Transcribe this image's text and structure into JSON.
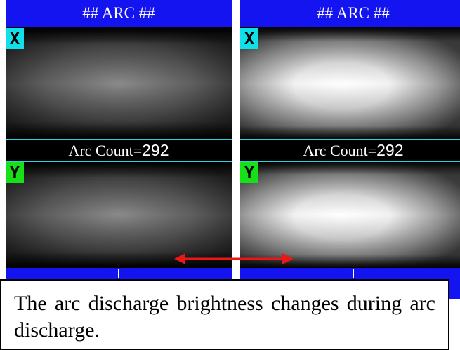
{
  "panels": [
    {
      "title": "## ARC ##",
      "x_label": "X",
      "y_label": "Y",
      "count_label": "Arc Count=",
      "count_value": "292",
      "brightness": 0.35
    },
    {
      "title": "## ARC ##",
      "x_label": "X",
      "y_label": "Y",
      "count_label": "Arc Count=",
      "count_value": "292",
      "brightness": 1.0
    }
  ],
  "caption": "The arc discharge brightness changes during arc discharge.",
  "colors": {
    "title_bar": "#1414f0",
    "x_badge": "#12e0e8",
    "y_badge": "#18e018",
    "separator": "#22d6e8",
    "arrow": "#e81818"
  },
  "icons": {
    "arrow": "double-headed-arrow-icon"
  }
}
